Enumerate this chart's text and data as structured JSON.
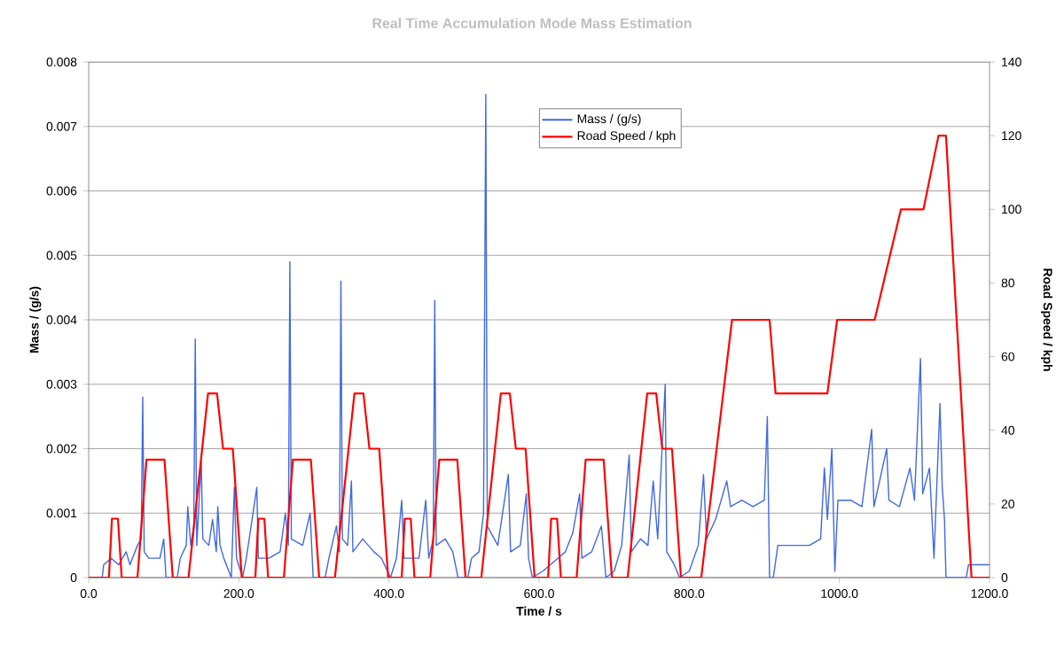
{
  "chart_data": {
    "type": "line",
    "title": "Real Time Accumulation Mode Mass Estimation",
    "xlabel": "Time / s",
    "ylabel": "Mass / (g/s)",
    "y2label": "Road Speed / kph",
    "xlim": [
      0,
      1200
    ],
    "xticks": [
      {
        "value": 0,
        "label": "0.0"
      },
      {
        "value": 200,
        "label": "200.0"
      },
      {
        "value": 400,
        "label": "400.0"
      },
      {
        "value": 600,
        "label": "600.0"
      },
      {
        "value": 800,
        "label": "800.0"
      },
      {
        "value": 1000,
        "label": "1000.0"
      },
      {
        "value": 1200,
        "label": "1200.0"
      }
    ],
    "ylim": [
      0,
      0.008
    ],
    "yticks": [
      0,
      0.001,
      0.002,
      0.003,
      0.004,
      0.005,
      0.006,
      0.007,
      0.008
    ],
    "y2lim": [
      0,
      140
    ],
    "y2ticks": [
      0,
      20,
      40,
      60,
      80,
      100,
      120,
      140
    ],
    "grid": "y",
    "legend": "top",
    "series": [
      {
        "name": "Mass / (g/s)",
        "color": "#4169e1",
        "x": [
          0,
          18,
          20,
          30,
          40,
          50,
          55,
          65,
          70,
          72,
          74,
          80,
          95,
          100,
          103,
          118,
          122,
          130,
          132,
          136,
          140,
          142,
          144,
          150,
          152,
          160,
          165,
          170,
          172,
          175,
          180,
          190,
          194,
          197,
          205,
          210,
          224,
          226,
          240,
          255,
          262,
          266,
          268,
          270,
          285,
          295,
          299,
          315,
          320,
          330,
          334,
          336,
          338,
          345,
          350,
          352,
          365,
          380,
          390,
          402,
          410,
          417,
          420,
          440,
          449,
          453,
          459,
          461,
          463,
          475,
          485,
          492,
          505,
          510,
          520,
          526,
          529,
          531,
          545,
          559,
          562,
          575,
          583,
          586,
          591,
          605,
          615,
          625,
          635,
          645,
          654,
          657,
          670,
          683,
          689,
          700,
          710,
          720,
          723,
          735,
          745,
          752,
          758,
          768,
          770,
          780,
          787,
          800,
          812,
          819,
          823,
          835,
          850,
          855,
          870,
          885,
          900,
          904,
          907,
          912,
          918,
          940,
          960,
          975,
          980,
          984,
          990,
          994,
          998,
          1015,
          1030,
          1043,
          1046,
          1063,
          1066,
          1080,
          1094,
          1100,
          1108,
          1111,
          1120,
          1126,
          1130,
          1134,
          1137,
          1140,
          1142,
          1169,
          1172,
          1200
        ],
        "values": [
          0,
          0,
          0.0002,
          0.0003,
          0.0002,
          0.0004,
          0.0002,
          0.0005,
          0.0006,
          0.0028,
          0.0004,
          0.0003,
          0.0003,
          0.0006,
          0,
          0,
          0.0003,
          0.0005,
          0.0011,
          0.0005,
          0.0008,
          0.0037,
          0.0005,
          0.0018,
          0.0006,
          0.0005,
          0.0009,
          0.0004,
          0.0011,
          0.0005,
          0.0003,
          0,
          0.0014,
          0.0003,
          0,
          0.0003,
          0.0014,
          0.0003,
          0.0003,
          0.0004,
          0.001,
          0.0005,
          0.0049,
          0.0006,
          0.0005,
          0.001,
          0,
          0,
          0.0003,
          0.0008,
          0.0004,
          0.0046,
          0.0006,
          0.0005,
          0.0015,
          0.0004,
          0.0006,
          0.0004,
          0.0003,
          0,
          0.0003,
          0.0012,
          0.0003,
          0.0003,
          0.0012,
          0.0003,
          0.0006,
          0.0043,
          0.0005,
          0.0006,
          0.0004,
          0,
          0,
          0.0003,
          0.0004,
          0.001,
          0.0075,
          0.0008,
          0.0005,
          0.0016,
          0.0004,
          0.0005,
          0.0013,
          0.0003,
          0,
          0.0001,
          0.0002,
          0.0003,
          0.0004,
          0.0007,
          0.0013,
          0.0003,
          0.0004,
          0.0008,
          0,
          0.0001,
          0.0005,
          0.0019,
          0.0004,
          0.0006,
          0.0005,
          0.0015,
          0.0006,
          0.003,
          0.0004,
          0.0002,
          0,
          0.0001,
          0.0005,
          0.0016,
          0.0006,
          0.0009,
          0.0015,
          0.0011,
          0.0012,
          0.0011,
          0.0012,
          0.0025,
          0,
          0,
          0.0005,
          0.0005,
          0.0005,
          0.0006,
          0.0017,
          0.0009,
          0.002,
          0.0001,
          0.0012,
          0.0012,
          0.0011,
          0.0023,
          0.0011,
          0.002,
          0.0012,
          0.0011,
          0.0017,
          0.0012,
          0.0034,
          0.0013,
          0.0017,
          0.0003,
          0.0015,
          0.0027,
          0.0014,
          0.0009,
          0,
          0,
          0.0002,
          0.0002
        ]
      },
      {
        "name": "Road Speed / kph",
        "color": "#ff0000",
        "axis": "y2",
        "x": [
          0,
          27,
          31,
          39,
          44,
          65,
          77,
          101,
          112,
          133,
          159,
          171,
          179,
          192,
          204,
          222,
          226,
          234,
          239,
          260,
          272,
          296,
          307,
          328,
          354,
          366,
          374,
          387,
          399,
          417,
          421,
          429,
          434,
          455,
          467,
          491,
          502,
          523,
          549,
          561,
          569,
          582,
          594,
          612,
          616,
          624,
          629,
          650,
          662,
          686,
          697,
          718,
          744,
          756,
          764,
          777,
          789,
          816,
          857,
          907,
          915,
          984,
          997,
          1047,
          1082,
          1112,
          1132,
          1142,
          1176,
          1200
        ],
        "values": [
          0,
          0,
          16,
          16,
          0,
          0,
          32,
          32,
          0,
          0,
          50,
          50,
          35,
          35,
          0,
          0,
          16,
          16,
          0,
          0,
          32,
          32,
          0,
          0,
          50,
          50,
          35,
          35,
          0,
          0,
          16,
          16,
          0,
          0,
          32,
          32,
          0,
          0,
          50,
          50,
          35,
          35,
          0,
          0,
          16,
          16,
          0,
          0,
          32,
          32,
          0,
          0,
          50,
          50,
          35,
          35,
          0,
          0,
          70,
          70,
          50,
          50,
          70,
          70,
          100,
          100,
          120,
          120,
          0,
          0
        ]
      }
    ]
  }
}
